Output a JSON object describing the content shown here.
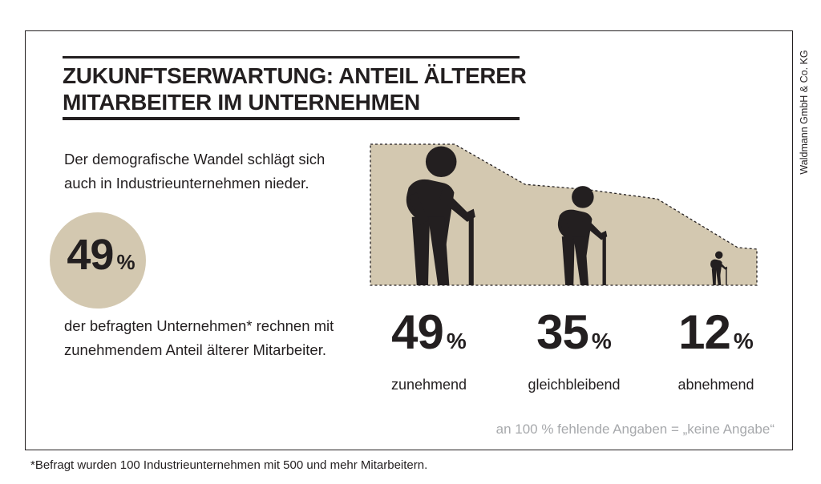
{
  "title_line1": "ZUKUNFTSERWARTUNG: ANTEIL ÄLTERER",
  "title_line2": "MITARBEITER IM UNTERNEHMEN",
  "intro_text": "Der demografische Wandel schlägt sich auch in Industrieunternehmen nieder.",
  "highlight_value": "49",
  "highlight_unit": "%",
  "result_text": "der befragten Unternehmen* rechnen mit zunehmendem Anteil älterer Mitarbeiter.",
  "note": "an 100 % fehlende Angaben = „keine Angabe“",
  "footnote": "*Befragt wurden 100 Industrieunternehmen mit 500 und mehr Mitarbeitern.",
  "credit": "Waldmann GmbH & Co. KG",
  "colors": {
    "area": "#d3c8b0",
    "figure": "#231f20",
    "note": "#a7a9ac"
  },
  "icons": [
    "elderly-person-with-cane-icon",
    "elderly-person-with-cane-icon",
    "elderly-person-with-cane-icon"
  ],
  "chart_data": {
    "type": "area",
    "categories": [
      "zunehmend",
      "gleichbleibend",
      "abnehmend"
    ],
    "values": [
      49,
      35,
      12
    ],
    "value_labels": [
      "49",
      "35",
      "12"
    ],
    "unit": "%"
  }
}
